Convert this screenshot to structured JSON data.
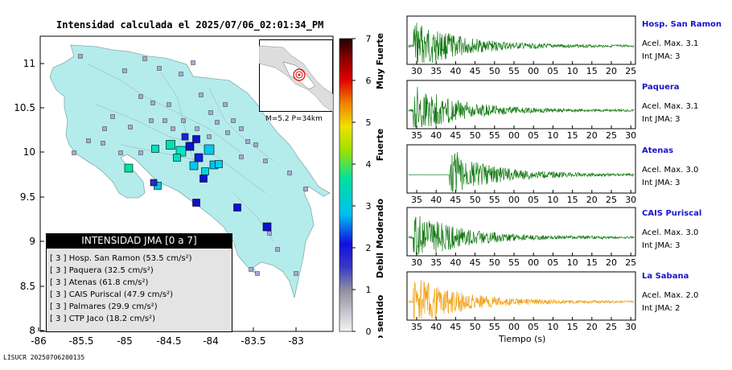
{
  "title": "Intensidad calculada el 2025/07/06_02:01:34_PM",
  "footer_id": "LISUCR 20250706200135",
  "map": {
    "y_ticks": [
      "11",
      "10.5",
      "10",
      "9.5",
      "9",
      "8.5",
      "8"
    ],
    "x_ticks": [
      "-86",
      "-85.5",
      "-85",
      "-84.5",
      "-84",
      "-83.5",
      "-83"
    ],
    "inset_label": "M=5.2  P=34km"
  },
  "legend": {
    "header": "INTENSIDAD JMA [0 a 7]",
    "items": [
      {
        "level": "[ 3 ]",
        "name": "Hosp. San Ramon",
        "value": "(53.5 cm/s²)"
      },
      {
        "level": "[ 3 ]",
        "name": "Paquera",
        "value": "(32.5 cm/s²)"
      },
      {
        "level": "[ 3 ]",
        "name": "Atenas",
        "value": "(61.8 cm/s²)"
      },
      {
        "level": "[ 3 ]",
        "name": "CAIS Puriscal",
        "value": "(47.9 cm/s²)"
      },
      {
        "level": "[ 3 ]",
        "name": "Palmares",
        "value": "(29.9 cm/s²)"
      },
      {
        "level": "[ 3 ]",
        "name": "CTP Jaco",
        "value": "(18.2 cm/s²)"
      }
    ]
  },
  "colorbar": {
    "ticks": [
      "7",
      "6",
      "5",
      "4",
      "3",
      "2",
      "1",
      "0"
    ],
    "labels": [
      "Muy Fuerte",
      "Fuerte",
      "Moderado",
      "Debil",
      "No sentido"
    ]
  },
  "stations": [
    {
      "name": "Hosp. San Ramon",
      "acel": "Acel. Max. 3.1",
      "int": "Int JMA: 3",
      "color": "#137a13",
      "ticks": [
        "30",
        "35",
        "40",
        "45",
        "50",
        "55",
        "00",
        "05",
        "10",
        "15",
        "20",
        "25"
      ]
    },
    {
      "name": "Paquera",
      "acel": "Acel. Max. 3.1",
      "int": "Int JMA: 3",
      "color": "#137a13",
      "ticks": [
        "35",
        "40",
        "45",
        "50",
        "55",
        "00",
        "05",
        "10",
        "15",
        "20",
        "25",
        "30"
      ]
    },
    {
      "name": "Atenas",
      "acel": "Acel. Max. 3.0",
      "int": "Int JMA: 3",
      "color": "#137a13",
      "ticks": [
        "35",
        "40",
        "45",
        "50",
        "55",
        "00",
        "05",
        "10",
        "15",
        "20",
        "25",
        "30"
      ]
    },
    {
      "name": "CAIS Puriscal",
      "acel": "Acel. Max. 3.0",
      "int": "Int JMA: 3",
      "color": "#137a13",
      "ticks": [
        "30",
        "35",
        "40",
        "45",
        "50",
        "55",
        "00",
        "05",
        "10",
        "15",
        "20",
        "25"
      ]
    },
    {
      "name": "La Sabana",
      "acel": "Acel. Max. 2.0",
      "int": "Int JMA: 2",
      "color": "#f0a010",
      "ticks": [
        "35",
        "40",
        "45",
        "50",
        "55",
        "00",
        "05",
        "10",
        "15",
        "20",
        "25",
        "30"
      ]
    }
  ],
  "x_axis_label": "Tiempo (s)",
  "colors": {
    "land": "#b4ecec",
    "legend_header_bg": "#000000",
    "legend_box_bg": "#e4e4e4"
  }
}
